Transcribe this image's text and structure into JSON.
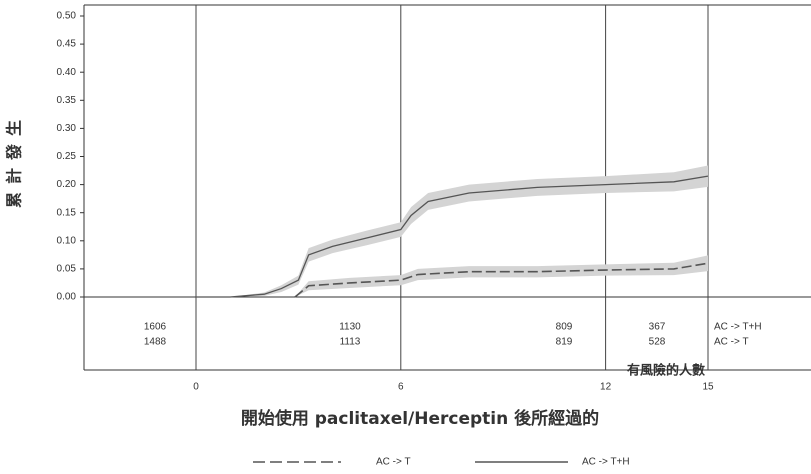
{
  "chart_data": {
    "type": "line",
    "ylabel": "累計發生",
    "xlabel": "開始使用 paclitaxel/Herceptin 後所經過的",
    "risk_table_title": "有風險的人數",
    "ylim": [
      0,
      0.5
    ],
    "yticks": [
      "0.00",
      "0.05",
      "0.10",
      "0.15",
      "0.20",
      "0.25",
      "0.30",
      "0.35",
      "0.40",
      "0.45",
      "0.50"
    ],
    "xticks": [
      "0",
      "6",
      "12",
      "15"
    ],
    "grid": "vertical lines at 0, 6, 12, 15",
    "legend_position": "bottom",
    "series": [
      {
        "name": "AC -> T",
        "style": "dashed",
        "color": "#555555",
        "x": [
          2.9,
          3.3,
          4.5,
          6.0,
          6.5,
          8.0,
          10.0,
          12.0,
          14.0,
          15.0
        ],
        "y": [
          0.0,
          0.02,
          0.025,
          0.03,
          0.04,
          0.045,
          0.045,
          0.048,
          0.05,
          0.06
        ],
        "lower": [
          0.0,
          0.012,
          0.016,
          0.021,
          0.03,
          0.035,
          0.035,
          0.038,
          0.039,
          0.046
        ],
        "upper": [
          0.0,
          0.028,
          0.034,
          0.039,
          0.05,
          0.055,
          0.055,
          0.058,
          0.061,
          0.074
        ]
      },
      {
        "name": "AC -> T+H",
        "style": "solid",
        "color": "#555555",
        "x": [
          0.0,
          1.0,
          2.0,
          2.5,
          3.0,
          3.3,
          4.0,
          5.0,
          6.0,
          6.3,
          6.8,
          8.0,
          10.0,
          12.0,
          14.0,
          15.0
        ],
        "y": [
          0.0,
          0.0,
          0.005,
          0.015,
          0.03,
          0.075,
          0.09,
          0.105,
          0.12,
          0.145,
          0.17,
          0.185,
          0.195,
          0.2,
          0.205,
          0.215
        ],
        "lower": [
          0.0,
          0.0,
          0.002,
          0.009,
          0.022,
          0.063,
          0.078,
          0.092,
          0.107,
          0.13,
          0.155,
          0.17,
          0.18,
          0.185,
          0.188,
          0.196
        ],
        "upper": [
          0.0,
          0.0,
          0.008,
          0.021,
          0.038,
          0.087,
          0.102,
          0.118,
          0.133,
          0.16,
          0.185,
          0.2,
          0.21,
          0.215,
          0.222,
          0.234
        ]
      }
    ],
    "risk_table": {
      "rows": [
        {
          "label": "AC -> T+H",
          "values": [
            "1606",
            "1130",
            "809",
            "367"
          ]
        },
        {
          "label": "AC -> T",
          "values": [
            "1488",
            "1113",
            "819",
            "528"
          ]
        }
      ]
    }
  }
}
